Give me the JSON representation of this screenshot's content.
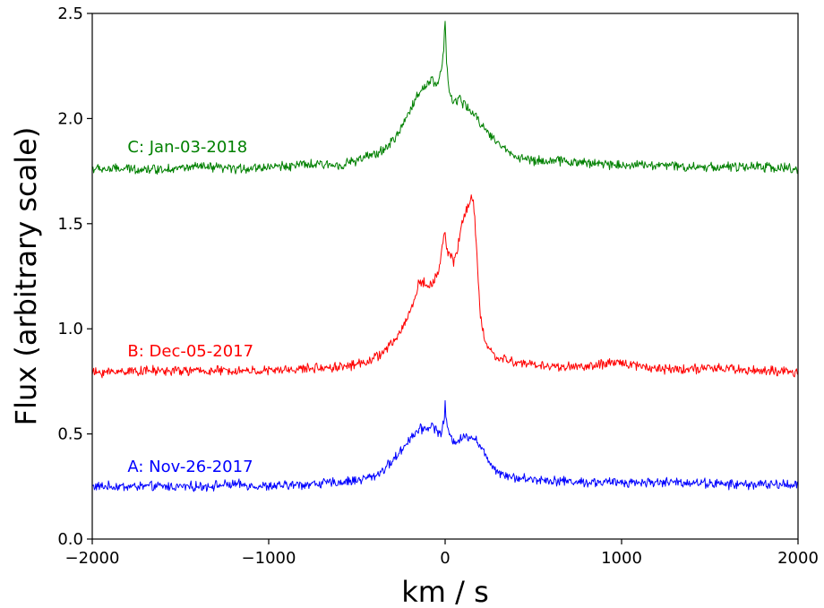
{
  "chart_data": {
    "type": "line",
    "title": "",
    "xlabel": "km / s",
    "ylabel": "Flux (arbitrary scale)",
    "xlim": [
      -2000,
      2000
    ],
    "ylim": [
      0.0,
      2.5
    ],
    "xticks": [
      -2000,
      -1000,
      0,
      1000,
      2000
    ],
    "xtick_labels": [
      "−2000",
      "−1000",
      "0",
      "1000",
      "2000"
    ],
    "yticks": [
      0.0,
      0.5,
      1.0,
      1.5,
      2.0,
      2.5
    ],
    "ytick_labels": [
      "0.0",
      "0.5",
      "1.0",
      "1.5",
      "2.0",
      "2.5"
    ],
    "grid": false,
    "legend": "none",
    "series": [
      {
        "name": "A: Nov-26-2017",
        "color": "#0000ff",
        "x": [
          -2000,
          -1800,
          -1600,
          -1400,
          -1200,
          -1000,
          -800,
          -600,
          -500,
          -400,
          -350,
          -300,
          -250,
          -200,
          -150,
          -100,
          -70,
          -50,
          -30,
          -15,
          -5,
          0,
          5,
          15,
          30,
          50,
          80,
          120,
          150,
          180,
          220,
          260,
          300,
          400,
          600,
          800,
          1000,
          1200,
          1400,
          1600,
          1800,
          2000
        ],
        "y": [
          0.25,
          0.25,
          0.25,
          0.25,
          0.26,
          0.25,
          0.26,
          0.27,
          0.28,
          0.3,
          0.33,
          0.37,
          0.42,
          0.48,
          0.52,
          0.53,
          0.54,
          0.52,
          0.5,
          0.52,
          0.58,
          0.64,
          0.58,
          0.52,
          0.48,
          0.47,
          0.47,
          0.49,
          0.49,
          0.47,
          0.41,
          0.36,
          0.32,
          0.29,
          0.28,
          0.27,
          0.27,
          0.27,
          0.27,
          0.26,
          0.26,
          0.26
        ]
      },
      {
        "name": "B: Dec-05-2017",
        "color": "#ff0000",
        "x": [
          -2000,
          -1800,
          -1600,
          -1400,
          -1200,
          -1000,
          -800,
          -600,
          -500,
          -400,
          -350,
          -300,
          -250,
          -200,
          -170,
          -150,
          -120,
          -100,
          -70,
          -50,
          -30,
          -15,
          -5,
          0,
          10,
          30,
          50,
          70,
          90,
          110,
          130,
          150,
          160,
          170,
          180,
          190,
          200,
          220,
          250,
          300,
          400,
          600,
          800,
          1000,
          1200,
          1400,
          1600,
          1800,
          2000
        ],
        "y": [
          0.79,
          0.8,
          0.8,
          0.8,
          0.8,
          0.8,
          0.81,
          0.82,
          0.83,
          0.86,
          0.89,
          0.93,
          0.99,
          1.08,
          1.15,
          1.22,
          1.22,
          1.2,
          1.22,
          1.25,
          1.3,
          1.4,
          1.46,
          1.44,
          1.37,
          1.35,
          1.32,
          1.38,
          1.48,
          1.55,
          1.58,
          1.62,
          1.6,
          1.5,
          1.35,
          1.2,
          1.06,
          0.96,
          0.9,
          0.86,
          0.84,
          0.82,
          0.82,
          0.84,
          0.81,
          0.81,
          0.81,
          0.8,
          0.79
        ]
      },
      {
        "name": "C: Jan-03-2018",
        "color": "#008000",
        "x": [
          -2000,
          -1800,
          -1600,
          -1400,
          -1200,
          -1000,
          -800,
          -600,
          -500,
          -400,
          -350,
          -300,
          -250,
          -200,
          -150,
          -100,
          -70,
          -50,
          -30,
          -15,
          -8,
          -3,
          0,
          3,
          8,
          15,
          25,
          40,
          60,
          80,
          100,
          130,
          160,
          200,
          250,
          300,
          350,
          400,
          500,
          600,
          800,
          1000,
          1200,
          1400,
          1600,
          1800,
          2000
        ],
        "y": [
          1.76,
          1.76,
          1.76,
          1.77,
          1.76,
          1.77,
          1.78,
          1.78,
          1.8,
          1.83,
          1.85,
          1.89,
          1.95,
          2.04,
          2.12,
          2.17,
          2.19,
          2.15,
          2.2,
          2.26,
          2.34,
          2.44,
          2.48,
          2.4,
          2.28,
          2.18,
          2.12,
          2.08,
          2.08,
          2.1,
          2.07,
          2.05,
          2.02,
          1.98,
          1.93,
          1.88,
          1.85,
          1.82,
          1.8,
          1.8,
          1.79,
          1.78,
          1.78,
          1.77,
          1.77,
          1.77,
          1.76
        ]
      }
    ]
  }
}
